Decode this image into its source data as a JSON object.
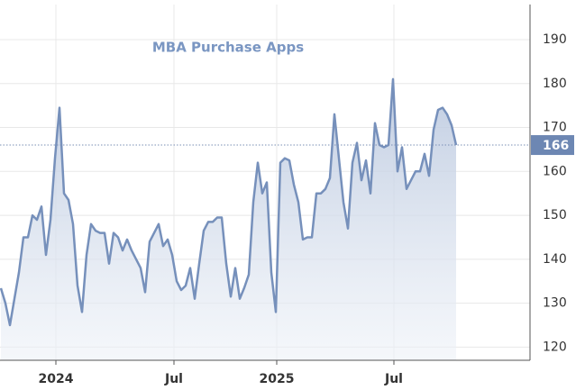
{
  "chart_data": {
    "type": "area",
    "title": "MBA Purchase Apps",
    "series": [
      {
        "name": "MBA Purchase Apps",
        "color": "#7690bb",
        "values": [
          133.4,
          130,
          125,
          131,
          137,
          145,
          145,
          150,
          149,
          152,
          141,
          149,
          163,
          174.5,
          155,
          153.5,
          148,
          134,
          128,
          141,
          148,
          146.5,
          146,
          146,
          139,
          146,
          145,
          142,
          144.5,
          142,
          140,
          138,
          132.5,
          144,
          146,
          148,
          143,
          144.5,
          141,
          135,
          133,
          134,
          138,
          131,
          139,
          146.5,
          148.5,
          148.5,
          149.5,
          149.5,
          139,
          131.5,
          138,
          131,
          133.5,
          136.5,
          153,
          162,
          155,
          157.5,
          137,
          128,
          162,
          163,
          162.5,
          157,
          153,
          144.5,
          145,
          145,
          155,
          155,
          156,
          158.5,
          173,
          163,
          153,
          147,
          162,
          166.5,
          158,
          162.5,
          155,
          171,
          166,
          165.5,
          166,
          181,
          160,
          165.5,
          156,
          158,
          160,
          160,
          164,
          159,
          169.5,
          174,
          174.5,
          173,
          170.5,
          166
        ]
      }
    ],
    "xlim": [
      -0.2,
      117.4
    ],
    "xticks": [
      {
        "value": 12.2,
        "label": "2024"
      },
      {
        "value": 38.4,
        "label": "Jul"
      },
      {
        "value": 61.2,
        "label": "2025"
      },
      {
        "value": 87.2,
        "label": "Jul"
      }
    ],
    "ylim": [
      117,
      198
    ],
    "yticks": [
      120,
      130,
      140,
      150,
      160,
      170,
      180,
      190
    ],
    "grid": true
  }
}
